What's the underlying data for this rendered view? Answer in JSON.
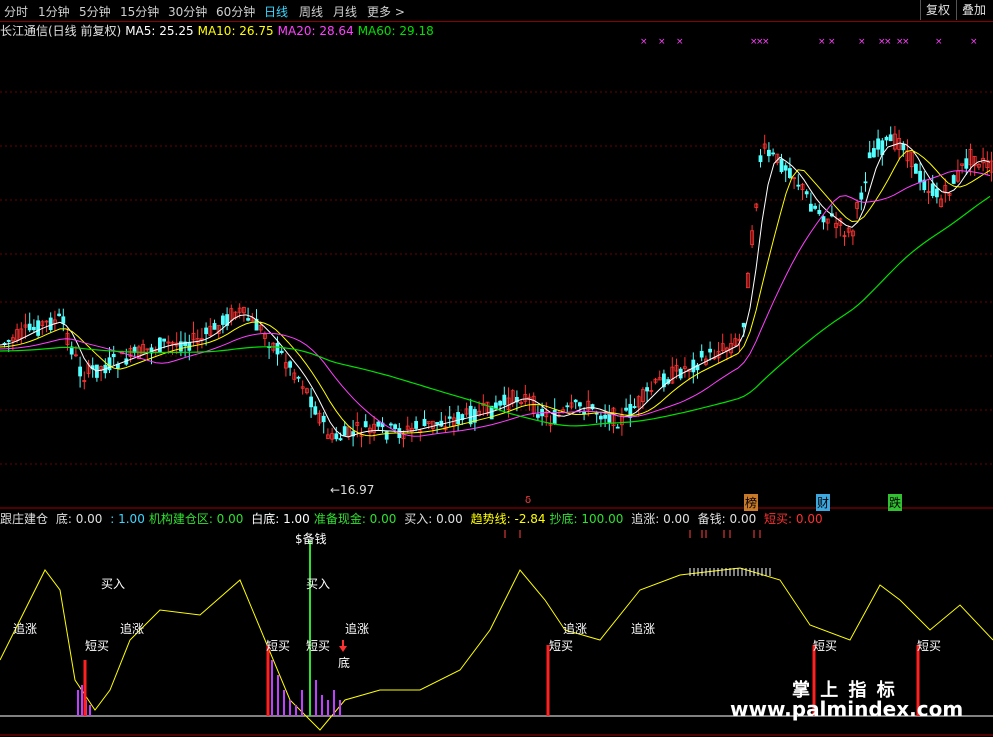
{
  "tabs": [
    "分时",
    "1分钟",
    "5分钟",
    "15分钟",
    "30分钟",
    "60分钟",
    "日线",
    "周线",
    "月线",
    "更多 >"
  ],
  "active_tab": "日线",
  "right_buttons": [
    "复权",
    "叠加"
  ],
  "main_legend": {
    "title": "长江通信(日线 前复权)",
    "ma5": "MA5: 25.25",
    "ma10": "MA10: 26.75",
    "ma20": "MA20: 28.64",
    "ma60": "MA60: 29.18",
    "colors": {
      "ma5": "#ffffff",
      "ma10": "#ffff00",
      "ma20": "#ff40ff",
      "ma60": "#00e000"
    }
  },
  "annotations": {
    "low_price": "←16.97",
    "markers": [
      "榜",
      "财",
      "跌"
    ],
    "small_marker": "δ"
  },
  "indicator_legend": {
    "name": "跟庄建仓",
    "di": "底: 0.00",
    "blank": ": 1.00",
    "jigou": "机构建仓区: 0.00",
    "baidi": "白底: 1.00",
    "zhunbei": "准备现金: 0.00",
    "mairu": "买入: 0.00",
    "qushi": "趋势线: -2.84",
    "chaodi": "抄底: 100.00",
    "zhuizhang": "追涨: 0.00",
    "beiqian": "备钱: 0.00",
    "duanmai": "短买: 0.00"
  },
  "indicator_labels": {
    "zhuizhang": "追涨",
    "mairu": "买入",
    "duanmai": "短买",
    "di": "底",
    "beiqian": "$备钱"
  },
  "watermark": {
    "cn": "掌 上 指 标",
    "url": "www.palmindex.com"
  }
}
